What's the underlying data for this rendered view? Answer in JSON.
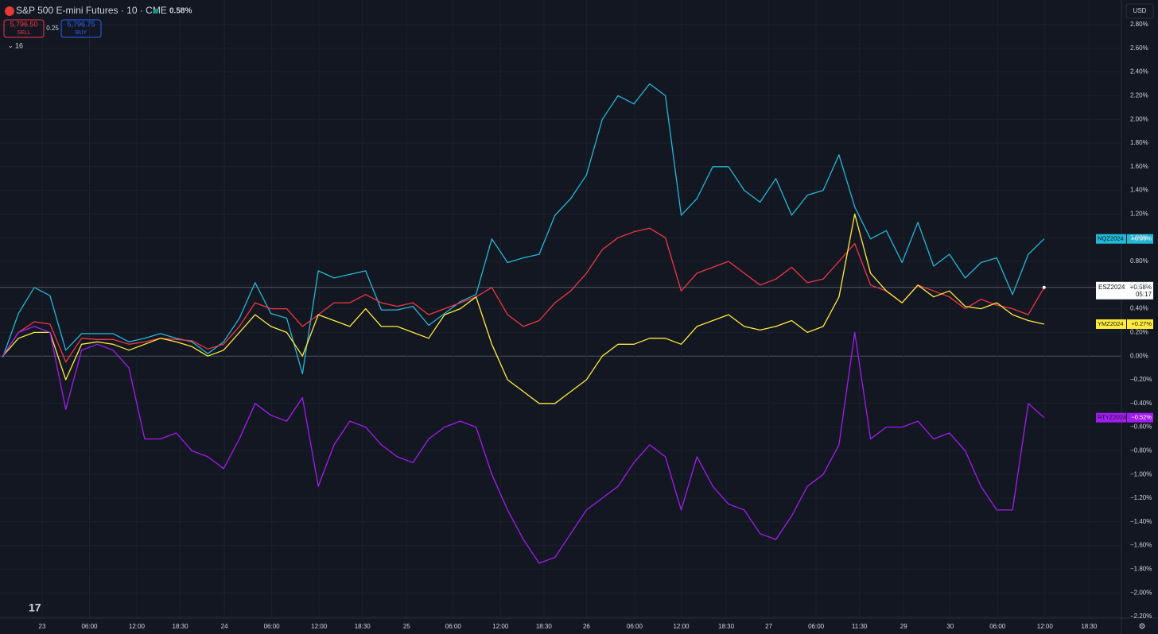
{
  "header": {
    "symbol": "S&P 500 E-mini Futures · 10 · CME",
    "change": "0.58%",
    "sell_price": "5,796.50",
    "sell": "SELL",
    "spread": "0.25",
    "buy_price": "5,796.75",
    "buy": "BUY",
    "indicators": "16",
    "currency": "USD"
  },
  "chart_data": {
    "type": "line",
    "x": [
      -5,
      -3,
      -1,
      1,
      3,
      5,
      7,
      9,
      11,
      13,
      15,
      17,
      19,
      21,
      23,
      25,
      27,
      29,
      31,
      33,
      35,
      37,
      39,
      41,
      43,
      45,
      47,
      49,
      51,
      53,
      55,
      57,
      59,
      61,
      63,
      65,
      67,
      69,
      71,
      73,
      75,
      77,
      79,
      81,
      83,
      85,
      87,
      89,
      91,
      93,
      95,
      97,
      99,
      101,
      103,
      105,
      107,
      109,
      111,
      113,
      115,
      117,
      119,
      121,
      123,
      125,
      127
    ],
    "xlim": [
      -5.34,
      136.8
    ],
    "xticks": [
      {
        "value": 0,
        "label": "23"
      },
      {
        "value": 6,
        "label": "06:00"
      },
      {
        "value": 12,
        "label": "12:00"
      },
      {
        "value": 17.5,
        "label": "18:30"
      },
      {
        "value": 23.1,
        "label": "24"
      },
      {
        "value": 29.1,
        "label": "06:00"
      },
      {
        "value": 35.1,
        "label": "12:00"
      },
      {
        "value": 40.6,
        "label": "18:30"
      },
      {
        "value": 46.2,
        "label": "25"
      },
      {
        "value": 52.1,
        "label": "06:00"
      },
      {
        "value": 58.1,
        "label": "12:00"
      },
      {
        "value": 63.6,
        "label": "18:30"
      },
      {
        "value": 69,
        "label": "26"
      },
      {
        "value": 75.1,
        "label": "06:00"
      },
      {
        "value": 81,
        "label": "12:00"
      },
      {
        "value": 86.7,
        "label": "18:30"
      },
      {
        "value": 92.1,
        "label": "27"
      },
      {
        "value": 98.1,
        "label": "06:00"
      },
      {
        "value": 103.6,
        "label": "11:30"
      },
      {
        "value": 109.2,
        "label": "29"
      },
      {
        "value": 115.1,
        "label": "30"
      },
      {
        "value": 121.1,
        "label": "06:00"
      },
      {
        "value": 127.1,
        "label": "12:00"
      },
      {
        "value": 132.7,
        "label": "18:30"
      }
    ],
    "ylim": [
      -2.2,
      2.8
    ],
    "yticks": [
      {
        "value": 2.8,
        "label": "2.80%"
      },
      {
        "value": 2.6,
        "label": "2.60%"
      },
      {
        "value": 2.4,
        "label": "2.40%"
      },
      {
        "value": 2.2,
        "label": "2.20%"
      },
      {
        "value": 2.0,
        "label": "2.00%"
      },
      {
        "value": 1.8,
        "label": "1.80%"
      },
      {
        "value": 1.6,
        "label": "1.60%"
      },
      {
        "value": 1.4,
        "label": "1.40%"
      },
      {
        "value": 1.2,
        "label": "1.20%"
      },
      {
        "value": 1.0,
        "label": "1.00%"
      },
      {
        "value": 0.8,
        "label": "0.80%"
      },
      {
        "value": 0.6,
        "label": "0.60%"
      },
      {
        "value": 0.4,
        "label": "0.40%"
      },
      {
        "value": 0.2,
        "label": "0.20%"
      },
      {
        "value": 0,
        "label": "0.00%"
      },
      {
        "value": -0.2,
        "label": "−0.20%"
      },
      {
        "value": -0.4,
        "label": "−0.40%"
      },
      {
        "value": -0.6,
        "label": "−0.60%"
      },
      {
        "value": -0.8,
        "label": "−0.80%"
      },
      {
        "value": -1.0,
        "label": "−1.00%"
      },
      {
        "value": -1.2,
        "label": "−1.20%"
      },
      {
        "value": -1.4,
        "label": "−1.40%"
      },
      {
        "value": -1.6,
        "label": "−1.60%"
      },
      {
        "value": -1.8,
        "label": "−1.80%"
      },
      {
        "value": -2.0,
        "label": "−2.00%"
      },
      {
        "value": -2.2,
        "label": "−2.20%"
      }
    ],
    "grid": true,
    "countdown": "05:17",
    "series": [
      {
        "name": "NQZ2024",
        "color": "#22b8d6",
        "last_label": "+0.99%",
        "values": [
          -0.01,
          0.36,
          0.58,
          0.51,
          0.05,
          0.19,
          0.19,
          0.19,
          0.12,
          0.15,
          0.19,
          0.15,
          0.12,
          0.02,
          0.12,
          0.32,
          0.62,
          0.36,
          0.32,
          -0.15,
          0.72,
          0.66,
          0.69,
          0.72,
          0.39,
          0.39,
          0.42,
          0.26,
          0.36,
          0.46,
          0.52,
          0.99,
          0.79,
          0.83,
          0.86,
          1.19,
          1.33,
          1.53,
          2.0,
          2.2,
          2.13,
          2.3,
          2.2,
          1.19,
          1.33,
          1.6,
          1.6,
          1.4,
          1.3,
          1.5,
          1.19,
          1.36,
          1.4,
          1.7,
          1.26,
          0.99,
          1.06,
          0.79,
          1.13,
          0.76,
          0.86,
          0.66,
          0.79,
          0.83,
          0.52,
          0.86,
          0.99
        ]
      },
      {
        "name": "ESZ2024",
        "color": "#f23645",
        "last_label": "+0.58%",
        "values": [
          0,
          0.2,
          0.29,
          0.27,
          -0.05,
          0.15,
          0.14,
          0.14,
          0.1,
          0.12,
          0.15,
          0.14,
          0.13,
          0.06,
          0.1,
          0.25,
          0.45,
          0.4,
          0.4,
          0.25,
          0.35,
          0.45,
          0.45,
          0.52,
          0.45,
          0.42,
          0.45,
          0.35,
          0.4,
          0.45,
          0.5,
          0.58,
          0.35,
          0.25,
          0.3,
          0.45,
          0.55,
          0.7,
          0.9,
          1.0,
          1.05,
          1.08,
          1.0,
          0.55,
          0.7,
          0.75,
          0.8,
          0.7,
          0.6,
          0.65,
          0.75,
          0.62,
          0.65,
          0.8,
          0.95,
          0.6,
          0.55,
          0.45,
          0.6,
          0.55,
          0.5,
          0.4,
          0.48,
          0.43,
          0.4,
          0.35,
          0.58
        ]
      },
      {
        "name": "YMZ2024",
        "color": "#ffeb3b",
        "last_label": "+0.27%",
        "values": [
          0,
          0.15,
          0.2,
          0.2,
          -0.2,
          0.1,
          0.12,
          0.1,
          0.05,
          0.1,
          0.15,
          0.12,
          0.08,
          0,
          0.05,
          0.2,
          0.35,
          0.25,
          0.2,
          0,
          0.35,
          0.3,
          0.25,
          0.4,
          0.25,
          0.25,
          0.2,
          0.15,
          0.35,
          0.4,
          0.5,
          0.1,
          -0.2,
          -0.3,
          -0.4,
          -0.4,
          -0.3,
          -0.2,
          0,
          0.1,
          0.1,
          0.15,
          0.15,
          0.1,
          0.25,
          0.3,
          0.35,
          0.25,
          0.22,
          0.25,
          0.3,
          0.2,
          0.25,
          0.5,
          1.2,
          0.7,
          0.55,
          0.45,
          0.6,
          0.5,
          0.55,
          0.42,
          0.4,
          0.45,
          0.35,
          0.3,
          0.27
        ]
      },
      {
        "name": "RTYZ2024",
        "color": "#a21cf0",
        "last_label": "−0.52%",
        "values": [
          0,
          0.2,
          0.25,
          0.2,
          -0.45,
          0.05,
          0.1,
          0.05,
          -0.1,
          -0.7,
          -0.7,
          -0.65,
          -0.8,
          -0.85,
          -0.95,
          -0.7,
          -0.4,
          -0.5,
          -0.55,
          -0.35,
          -1.1,
          -0.75,
          -0.55,
          -0.6,
          -0.75,
          -0.85,
          -0.9,
          -0.7,
          -0.6,
          -0.55,
          -0.6,
          -1.0,
          -1.3,
          -1.55,
          -1.75,
          -1.7,
          -1.5,
          -1.3,
          -1.2,
          -1.1,
          -0.9,
          -0.75,
          -0.85,
          -1.3,
          -0.85,
          -1.1,
          -1.25,
          -1.3,
          -1.5,
          -1.55,
          -1.35,
          -1.1,
          -1.0,
          -0.75,
          0.2,
          -0.7,
          -0.6,
          -0.6,
          -0.55,
          -0.7,
          -0.65,
          -0.8,
          -1.1,
          -1.3,
          -1.3,
          -0.4,
          -0.52
        ]
      }
    ]
  }
}
